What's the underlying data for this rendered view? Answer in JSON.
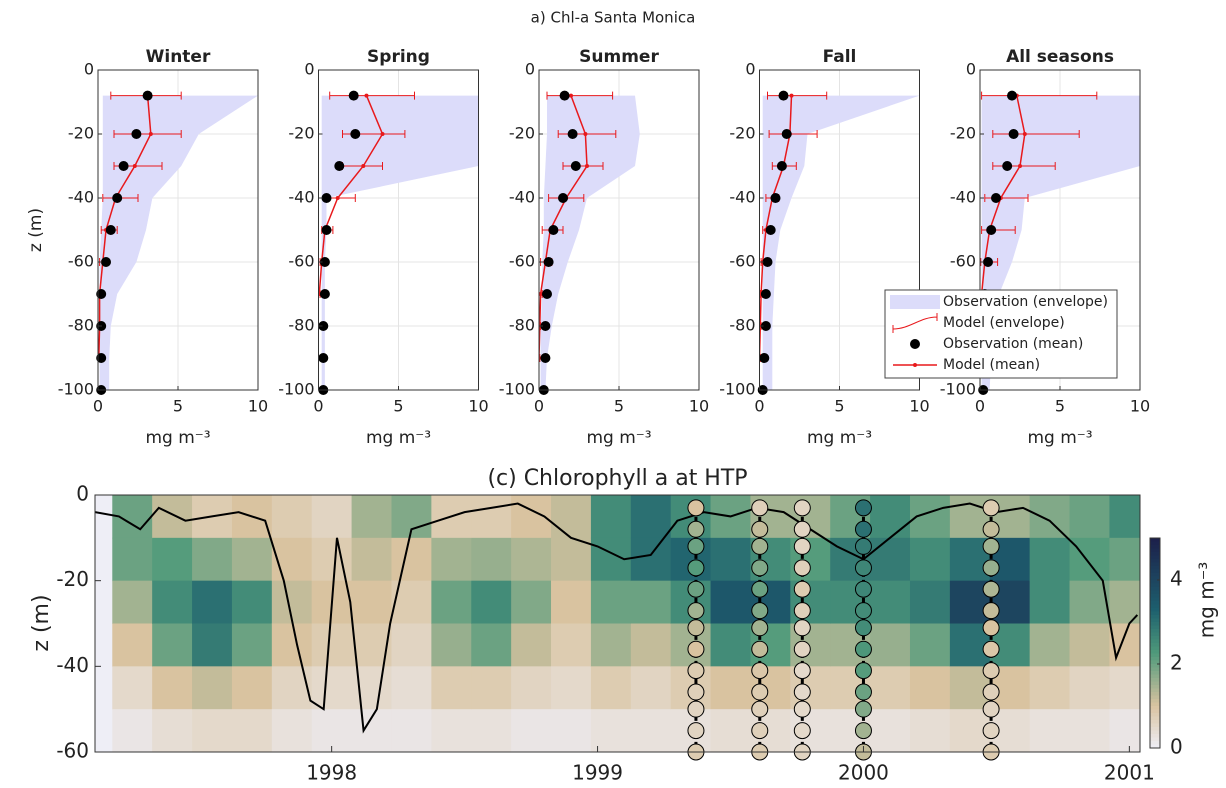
{
  "figure_title": "a) Chl-a Santa Monica",
  "chart_data": [
    {
      "type": "profile",
      "title": "Winter",
      "xlabel": "mg m⁻³",
      "ylabel": "z (m)",
      "xlim": [
        0,
        10
      ],
      "xticks": [
        0,
        5,
        10
      ],
      "ylim": [
        -100,
        0
      ],
      "yticks": [
        0,
        -20,
        -40,
        -60,
        -80,
        -100
      ],
      "grid": true,
      "depths": [
        -8,
        -20,
        -30,
        -40,
        -50,
        -60,
        -70,
        -80,
        -90,
        -100
      ],
      "series": [
        {
          "style": "band",
          "color": "#dcdcfa",
          "low": [
            0.3,
            0.3,
            0.3,
            0.3,
            0.2,
            0.1,
            0.1,
            0.1,
            0.1,
            0.1
          ],
          "high": [
            10,
            6.3,
            5.2,
            3.4,
            3.0,
            2.4,
            1.2,
            0.8,
            0.7,
            0.7
          ]
        },
        {
          "style": "errorbar",
          "color": "#e8191c",
          "low": [
            0.8,
            1.0,
            1.0,
            0.3,
            0.2,
            0.1,
            0.05,
            0.05,
            0.0,
            null
          ],
          "high": [
            5.2,
            5.2,
            4.0,
            2.5,
            1.2,
            0.6,
            0.3,
            0.2,
            0.1,
            null
          ]
        },
        {
          "style": "dots",
          "color": "#000000",
          "values": [
            3.1,
            2.4,
            1.6,
            1.2,
            0.8,
            0.5,
            0.2,
            0.2,
            0.2,
            0.2
          ]
        },
        {
          "style": "line",
          "color": "#e8191c",
          "values": [
            3.1,
            3.3,
            2.3,
            1.1,
            0.5,
            0.3,
            0.1,
            0.1,
            0.05,
            null
          ]
        }
      ]
    },
    {
      "type": "profile",
      "title": "Spring",
      "xlabel": "mg m⁻³",
      "xlim": [
        0,
        10
      ],
      "xticks": [
        0,
        5,
        10
      ],
      "ylim": [
        -100,
        0
      ],
      "yticks": [
        0,
        -20,
        -40,
        -60,
        -80,
        -100
      ],
      "grid": true,
      "depths": [
        -8,
        -20,
        -30,
        -40,
        -50,
        -60,
        -70,
        -80,
        -90,
        -100
      ],
      "series": [
        {
          "style": "band",
          "color": "#dcdcfa",
          "low": [
            0.2,
            0.2,
            0.2,
            0.2,
            0.2,
            0.2,
            0.2,
            0.2,
            0.2,
            0.2
          ],
          "high": [
            10,
            10,
            10,
            0.5,
            0.5,
            0.4,
            0.4,
            0.4,
            0.4,
            0.4
          ]
        },
        {
          "style": "errorbar",
          "color": "#e8191c",
          "low": [
            0.7,
            1.5,
            1.5,
            0.5,
            0.2,
            0.1,
            0.0,
            null,
            null,
            null
          ],
          "high": [
            6.0,
            5.4,
            4.0,
            2.3,
            0.9,
            0.4,
            0.1,
            null,
            null,
            null
          ]
        },
        {
          "style": "dots",
          "color": "#000000",
          "values": [
            2.2,
            2.3,
            1.3,
            0.5,
            0.5,
            0.4,
            0.4,
            0.3,
            0.3,
            0.3
          ]
        },
        {
          "style": "line",
          "color": "#e8191c",
          "values": [
            3.0,
            4.0,
            2.8,
            1.2,
            0.4,
            0.2,
            0.05,
            null,
            null,
            null
          ]
        }
      ]
    },
    {
      "type": "profile",
      "title": "Summer",
      "xlabel": "mg m⁻³",
      "xlim": [
        0,
        10
      ],
      "xticks": [
        0,
        5,
        10
      ],
      "ylim": [
        -100,
        0
      ],
      "yticks": [
        0,
        -20,
        -40,
        -60,
        -80,
        -100
      ],
      "grid": true,
      "depths": [
        -8,
        -20,
        -30,
        -40,
        -50,
        -60,
        -70,
        -80,
        -90,
        -100
      ],
      "series": [
        {
          "style": "band",
          "color": "#dcdcfa",
          "low": [
            0.5,
            0.5,
            0.4,
            0.3,
            0.3,
            0.2,
            0.2,
            0.1,
            0.1,
            0.1
          ],
          "high": [
            6.0,
            6.3,
            6.0,
            3.0,
            2.5,
            1.8,
            1.2,
            0.8,
            0.5,
            0.4
          ]
        },
        {
          "style": "errorbar",
          "color": "#e8191c",
          "low": [
            0.5,
            1.2,
            1.5,
            0.6,
            0.2,
            0.1,
            0.0,
            0.0,
            0.0,
            null
          ],
          "high": [
            4.6,
            4.8,
            4.0,
            2.8,
            1.5,
            0.8,
            0.2,
            0.1,
            0.05,
            null
          ]
        },
        {
          "style": "dots",
          "color": "#000000",
          "values": [
            1.6,
            2.1,
            2.3,
            1.5,
            0.9,
            0.6,
            0.5,
            0.4,
            0.4,
            0.3
          ]
        },
        {
          "style": "line",
          "color": "#e8191c",
          "values": [
            2.0,
            2.9,
            3.0,
            1.7,
            0.7,
            0.4,
            0.1,
            0.05,
            0.0,
            null
          ]
        }
      ]
    },
    {
      "type": "profile",
      "title": "Fall",
      "xlabel": "mg m⁻³",
      "xlim": [
        0,
        10
      ],
      "xticks": [
        0,
        5,
        10
      ],
      "ylim": [
        -100,
        0
      ],
      "yticks": [
        0,
        -20,
        -40,
        -60,
        -80,
        -100
      ],
      "grid": true,
      "depths": [
        -8,
        -20,
        -30,
        -40,
        -50,
        -60,
        -70,
        -80,
        -90,
        -100
      ],
      "series": [
        {
          "style": "band",
          "color": "#dcdcfa",
          "low": [
            0.2,
            0.2,
            0.2,
            0.2,
            0.2,
            0.2,
            0.2,
            0.2,
            0.2,
            0.2
          ],
          "high": [
            10,
            3.0,
            2.8,
            2.0,
            1.3,
            1.0,
            0.9,
            0.8,
            0.8,
            0.8
          ]
        },
        {
          "style": "errorbar",
          "color": "#e8191c",
          "low": [
            0.5,
            0.6,
            0.8,
            0.4,
            0.2,
            0.1,
            0.05,
            0.0,
            0.0,
            null
          ],
          "high": [
            4.2,
            3.6,
            2.3,
            1.2,
            0.6,
            0.4,
            0.2,
            0.1,
            0.05,
            null
          ]
        },
        {
          "style": "dots",
          "color": "#000000",
          "values": [
            1.5,
            1.7,
            1.4,
            1.0,
            0.7,
            0.5,
            0.4,
            0.4,
            0.3,
            0.2
          ]
        },
        {
          "style": "line",
          "color": "#e8191c",
          "values": [
            2.0,
            1.9,
            1.5,
            0.8,
            0.4,
            0.2,
            0.1,
            0.05,
            0.0,
            null
          ]
        }
      ]
    },
    {
      "type": "profile",
      "title": "All seasons",
      "xlabel": "mg m⁻³",
      "xlim": [
        0,
        10
      ],
      "xticks": [
        0,
        5,
        10
      ],
      "ylim": [
        -100,
        0
      ],
      "yticks": [
        0,
        -20,
        -40,
        -60,
        -80,
        -100
      ],
      "grid": true,
      "legend": "lower right",
      "depths": [
        -8,
        -20,
        -30,
        -40,
        -50,
        -60,
        -70,
        -80,
        -90,
        -100
      ],
      "series": [
        {
          "name": "Observation (envelope)",
          "style": "band",
          "color": "#dcdcfa",
          "low": [
            0.1,
            0.1,
            0.1,
            0.1,
            0.1,
            0.1,
            0.1,
            0.1,
            0.1,
            0.1
          ],
          "high": [
            10,
            10,
            10,
            2.8,
            2.6,
            2.0,
            1.2,
            0.8,
            0.7,
            0.6
          ]
        },
        {
          "name": "Model (envelope)",
          "style": "errorbar",
          "color": "#e8191c",
          "low": [
            0.1,
            0.8,
            0.8,
            0.3,
            0.1,
            0.05,
            0.0,
            0.0,
            null,
            null
          ],
          "high": [
            7.3,
            6.2,
            4.7,
            3.0,
            2.2,
            1.1,
            0.4,
            0.2,
            null,
            null
          ]
        },
        {
          "name": "Observation (mean)",
          "style": "dots",
          "color": "#000000",
          "values": [
            2.0,
            2.1,
            1.7,
            1.0,
            0.7,
            0.5,
            0.3,
            0.3,
            0.3,
            0.2
          ]
        },
        {
          "name": "Model (mean)",
          "style": "line",
          "color": "#e8191c",
          "values": [
            2.3,
            2.8,
            2.5,
            1.3,
            0.6,
            0.3,
            0.1,
            0.05,
            null,
            null
          ]
        }
      ]
    },
    {
      "type": "heatmap",
      "title": "(c) Chlorophyll a at HTP",
      "ylabel": "z (m)",
      "xlim": [
        1997.11,
        2001.04
      ],
      "xticks": [
        1998,
        1999,
        2000,
        2001
      ],
      "ylim": [
        -60,
        0
      ],
      "yticks": [
        0,
        -20,
        -40,
        -60
      ],
      "colorbar": {
        "label": "mg m⁻³",
        "lim": [
          0,
          5
        ],
        "ticks": [
          0,
          2,
          4
        ]
      },
      "x": [
        1997.25,
        1997.4,
        1997.55,
        1997.7,
        1997.85,
        1998.0,
        1998.15,
        1998.3,
        1998.45,
        1998.6,
        1998.75,
        1998.9,
        1999.05,
        1999.2,
        1999.35,
        1999.5,
        1999.65,
        1999.8,
        1999.95,
        2000.1,
        2000.25,
        2000.4,
        2000.55,
        2000.7,
        2000.85,
        2001.0
      ],
      "z": [
        -5,
        -15,
        -25,
        -35,
        -45,
        -55
      ],
      "values": [
        [
          2.0,
          2.0,
          1.5,
          1.0,
          0.5,
          0.2
        ],
        [
          1.2,
          2.2,
          2.5,
          2.0,
          1.0,
          0.4
        ],
        [
          0.8,
          1.8,
          3.0,
          2.8,
          1.2,
          0.5
        ],
        [
          1.0,
          1.5,
          2.5,
          2.0,
          1.0,
          0.5
        ],
        [
          0.8,
          1.0,
          1.2,
          1.0,
          0.6,
          0.3
        ],
        [
          0.6,
          0.8,
          1.0,
          0.8,
          0.5,
          0.2
        ],
        [
          1.5,
          1.2,
          1.0,
          0.8,
          0.5,
          0.2
        ],
        [
          1.8,
          1.0,
          0.8,
          0.6,
          0.4,
          0.2
        ],
        [
          0.8,
          1.5,
          2.0,
          1.6,
          0.8,
          0.3
        ],
        [
          0.8,
          1.6,
          2.5,
          2.0,
          0.8,
          0.3
        ],
        [
          1.0,
          1.4,
          1.8,
          1.2,
          0.6,
          0.2
        ],
        [
          1.2,
          1.2,
          1.0,
          0.8,
          0.5,
          0.2
        ],
        [
          2.5,
          2.5,
          2.0,
          1.5,
          0.8,
          0.3
        ],
        [
          3.0,
          3.0,
          2.0,
          1.2,
          0.6,
          0.3
        ],
        [
          2.5,
          3.2,
          2.5,
          1.5,
          0.8,
          0.3
        ],
        [
          2.0,
          3.0,
          3.5,
          2.5,
          1.0,
          0.4
        ],
        [
          1.5,
          2.5,
          3.5,
          2.2,
          1.0,
          0.4
        ],
        [
          1.5,
          2.2,
          2.5,
          1.5,
          0.8,
          0.3
        ],
        [
          2.0,
          2.8,
          2.5,
          1.5,
          0.8,
          0.3
        ],
        [
          2.5,
          2.8,
          2.5,
          1.6,
          0.8,
          0.3
        ],
        [
          2.0,
          2.5,
          2.8,
          2.0,
          1.0,
          0.4
        ],
        [
          1.5,
          3.0,
          4.0,
          3.0,
          1.2,
          0.5
        ],
        [
          1.5,
          3.5,
          4.0,
          2.5,
          1.0,
          0.4
        ],
        [
          1.8,
          2.5,
          2.5,
          1.5,
          0.8,
          0.3
        ],
        [
          2.0,
          2.2,
          1.8,
          1.2,
          0.6,
          0.3
        ],
        [
          2.5,
          2.0,
          1.5,
          1.0,
          0.5,
          0.2
        ]
      ],
      "line": {
        "color": "#000000",
        "x": [
          1997.11,
          1997.2,
          1997.28,
          1997.35,
          1997.45,
          1997.55,
          1997.65,
          1997.75,
          1997.82,
          1997.87,
          1997.92,
          1997.97,
          1998.02,
          1998.07,
          1998.12,
          1998.17,
          1998.22,
          1998.3,
          1998.4,
          1998.5,
          1998.6,
          1998.7,
          1998.8,
          1998.9,
          1999.0,
          1999.1,
          1999.2,
          1999.3,
          1999.4,
          1999.5,
          1999.6,
          1999.7,
          1999.8,
          1999.9,
          2000.0,
          2000.1,
          2000.2,
          2000.3,
          2000.4,
          2000.5,
          2000.6,
          2000.7,
          2000.8,
          2000.9,
          2000.95,
          2001.0,
          2001.03
        ],
        "values": [
          -4,
          -5,
          -8,
          -3,
          -6,
          -5,
          -4,
          -6,
          -20,
          -35,
          -48,
          -50,
          -10,
          -25,
          -55,
          -50,
          -30,
          -8,
          -6,
          -4,
          -3,
          -2,
          -5,
          -10,
          -12,
          -15,
          -14,
          -6,
          -4,
          -5,
          -3,
          -4,
          -8,
          -12,
          -15,
          -10,
          -5,
          -3,
          -2,
          -4,
          -3,
          -6,
          -12,
          -20,
          -38,
          -30,
          -28
        ]
      },
      "profiles": [
        {
          "x": 1999.37,
          "z": [
            -3,
            -8,
            -12,
            -17,
            -22,
            -27,
            -31,
            -36,
            -41,
            -46,
            -50,
            -55,
            -60
          ],
          "values": [
            1.0,
            1.5,
            2.0,
            2.2,
            2.0,
            1.5,
            1.2,
            1.0,
            0.8,
            0.7,
            0.6,
            0.6,
            0.8
          ]
        },
        {
          "x": 1999.61,
          "z": [
            -3,
            -8,
            -12,
            -17,
            -22,
            -27,
            -31,
            -36,
            -41,
            -46,
            -50,
            -55,
            -60
          ],
          "values": [
            0.7,
            1.2,
            1.5,
            1.8,
            2.0,
            1.8,
            1.5,
            1.2,
            0.9,
            0.8,
            0.7,
            0.7,
            0.8
          ]
        },
        {
          "x": 1999.77,
          "z": [
            -3,
            -8,
            -12,
            -17,
            -22,
            -27,
            -31,
            -36,
            -41,
            -46,
            -50,
            -55,
            -60
          ],
          "values": [
            0.6,
            0.6,
            0.6,
            0.7,
            0.8,
            0.7,
            0.6,
            0.6,
            0.5,
            0.5,
            0.5,
            0.5,
            0.6
          ]
        },
        {
          "x": 2000.0,
          "z": [
            -3,
            -8,
            -12,
            -17,
            -22,
            -27,
            -31,
            -36,
            -41,
            -46,
            -50,
            -55,
            -60
          ],
          "values": [
            3.0,
            3.0,
            2.8,
            2.6,
            2.6,
            2.5,
            2.5,
            2.3,
            2.2,
            2.0,
            1.8,
            1.5,
            1.2
          ]
        },
        {
          "x": 2000.48,
          "z": [
            -3,
            -8,
            -12,
            -17,
            -22,
            -27,
            -31,
            -36,
            -41,
            -46,
            -50,
            -55,
            -60
          ],
          "values": [
            0.8,
            1.2,
            1.5,
            1.6,
            1.4,
            1.2,
            1.0,
            0.9,
            0.8,
            0.7,
            0.6,
            0.6,
            0.8
          ]
        }
      ]
    }
  ]
}
